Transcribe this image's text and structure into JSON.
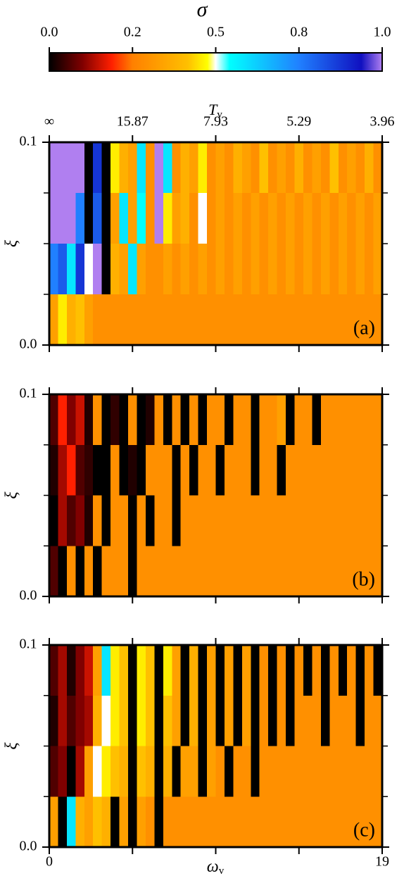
{
  "chart_data": {
    "type": "heatmap",
    "colorbar_title": "σ",
    "colorbar_ticks": [
      {
        "value": 0,
        "label": "0.0"
      },
      0.2,
      0.5,
      0.8,
      {
        "value": 1,
        "label": "1.0"
      }
    ],
    "colorscale": [
      [
        0,
        "#000000"
      ],
      [
        0.08,
        "#800000"
      ],
      [
        0.15,
        "#ff2000"
      ],
      [
        0.2,
        "#ff8000"
      ],
      [
        0.4,
        "#ffc000"
      ],
      [
        0.47,
        "#ffff00"
      ],
      [
        0.5,
        "#ffffff"
      ],
      [
        0.55,
        "#00ffff"
      ],
      [
        0.8,
        "#2080ff"
      ],
      [
        0.95,
        "#1010c0"
      ],
      [
        1,
        "#b07ff0"
      ]
    ],
    "x2label": "T",
    "x2label_sub": "v",
    "x2ticks": [
      {
        "value": 0,
        "label": "∞"
      },
      {
        "value": 4.75,
        "label": "15.87"
      },
      {
        "value": 9.5,
        "label": "7.93"
      },
      {
        "value": 14.25,
        "label": "5.29"
      },
      {
        "value": 19,
        "label": "3.96"
      }
    ],
    "xlabel": "ω",
    "xlabel_sub": "v",
    "xlim": [
      0,
      19
    ],
    "xticks": [
      0,
      19
    ],
    "xminor": [
      4.75,
      9.5,
      14.25
    ],
    "ylabel": "ξ",
    "ylim": [
      0,
      0.1
    ],
    "yticks": [
      {
        "value": 0,
        "label": "0.0"
      },
      0.1
    ],
    "yminor": [
      0.025,
      0.05,
      0.075
    ],
    "x": [
      0.25,
      0.75,
      1.25,
      1.75,
      2.25,
      2.75,
      3.25,
      3.75,
      4.25,
      4.75,
      5.25,
      5.75,
      6.25,
      6.75,
      7.25,
      7.75,
      8.25,
      8.75,
      9.25,
      9.75,
      10.25,
      10.75,
      11.25,
      11.75,
      12.25,
      12.75,
      13.25,
      13.75,
      14.25,
      14.75,
      15.25,
      15.75,
      16.25,
      16.75,
      17.25,
      17.75,
      18.25,
      18.75
    ],
    "y": [
      0.0875,
      0.0625,
      0.0375,
      0.0125
    ],
    "panels": [
      {
        "label": "(a)",
        "z": [
          [
            1,
            1,
            1,
            1,
            0,
            0.9,
            0,
            0.45,
            0.35,
            0.3,
            0.6,
            0.25,
            1,
            0.6,
            0.25,
            0.35,
            0.3,
            0.45,
            0.25,
            0.3,
            0.25,
            0.35,
            0.3,
            0.25,
            0.4,
            0.25,
            0.3,
            0.25,
            0.35,
            0.25,
            0.3,
            0.25,
            0.4,
            0.25,
            0.3,
            0.25,
            0.35,
            0.25
          ],
          [
            1,
            1,
            1,
            0.8,
            0,
            0.85,
            0,
            0.3,
            0.6,
            0.3,
            0.55,
            0.25,
            1,
            0.45,
            0.3,
            0.35,
            0.25,
            0.5,
            0.25,
            0.3,
            0.25,
            0.3,
            0.25,
            0.3,
            0.25,
            0.3,
            0.25,
            0.3,
            0.25,
            0.3,
            0.25,
            0.3,
            0.25,
            0.3,
            0.25,
            0.3,
            0.25,
            0.3
          ],
          [
            0.8,
            0.85,
            0.6,
            0.9,
            0.5,
            1,
            0,
            0.35,
            0.3,
            0.6,
            0.3,
            0.25,
            0.25,
            0.3,
            0.25,
            0.3,
            0.25,
            0.3,
            0.25,
            0.3,
            0.25,
            0.3,
            0.25,
            0.3,
            0.25,
            0.3,
            0.25,
            0.3,
            0.25,
            0.3,
            0.25,
            0.3,
            0.25,
            0.3,
            0.25,
            0.3,
            0.25,
            0.3
          ],
          [
            0.3,
            0.45,
            0.35,
            0.4,
            0.3,
            0.25,
            0.25,
            0.25,
            0.25,
            0.25,
            0.25,
            0.25,
            0.25,
            0.25,
            0.25,
            0.25,
            0.25,
            0.25,
            0.25,
            0.25,
            0.25,
            0.25,
            0.25,
            0.25,
            0.25,
            0.25,
            0.25,
            0.25,
            0.25,
            0.25,
            0.25,
            0.25,
            0.25,
            0.25,
            0.25,
            0.25,
            0.25,
            0.25
          ]
        ]
      },
      {
        "label": "(b)",
        "z": [
          [
            0.05,
            0.15,
            0.08,
            0.12,
            0.02,
            0.25,
            0,
            0.03,
            0,
            0.25,
            0,
            0.02,
            0.25,
            0,
            0.25,
            0,
            0.25,
            0,
            0.25,
            0.25,
            0,
            0.25,
            0.25,
            0,
            0.25,
            0.25,
            0.3,
            0,
            0.25,
            0.25,
            0,
            0.25,
            0.25,
            0.25,
            0.25,
            0.25,
            0.25,
            0.25
          ],
          [
            0.02,
            0.1,
            0.15,
            0.05,
            0.03,
            0,
            0,
            0.25,
            0,
            0.02,
            0,
            0.25,
            0.25,
            0.25,
            0,
            0.25,
            0,
            0.25,
            0.25,
            0,
            0.25,
            0.25,
            0.25,
            0,
            0.25,
            0.25,
            0,
            0.25,
            0.25,
            0.25,
            0.25,
            0.25,
            0.25,
            0.25,
            0.25,
            0.25,
            0.25,
            0.25
          ],
          [
            0,
            0.1,
            0.05,
            0.08,
            0.02,
            0.25,
            0,
            0.25,
            0.25,
            0,
            0.25,
            0,
            0.25,
            0.25,
            0,
            0.25,
            0.25,
            0.25,
            0.25,
            0.25,
            0.25,
            0.25,
            0.25,
            0.25,
            0.25,
            0.25,
            0.25,
            0.25,
            0.25,
            0.25,
            0.25,
            0.25,
            0.25,
            0.25,
            0.25,
            0.25,
            0.25,
            0.25
          ],
          [
            0.05,
            0,
            0.25,
            0,
            0.25,
            0,
            0.25,
            0.25,
            0.25,
            0,
            0.25,
            0.25,
            0.25,
            0.25,
            0.25,
            0.25,
            0.25,
            0.25,
            0.25,
            0.25,
            0.25,
            0.25,
            0.25,
            0.25,
            0.25,
            0.25,
            0.25,
            0.25,
            0.25,
            0.25,
            0.25,
            0.25,
            0.25,
            0.25,
            0.25,
            0.25,
            0.25,
            0.25
          ]
        ]
      },
      {
        "label": "(c)",
        "z": [
          [
            0.05,
            0.1,
            0.02,
            0.08,
            0.12,
            0.3,
            0.6,
            0.45,
            0.4,
            0,
            0.45,
            0.4,
            0,
            0.45,
            0.3,
            0,
            0.35,
            0,
            0.3,
            0,
            0.3,
            0,
            0.3,
            0,
            0.25,
            0,
            0.25,
            0,
            0.25,
            0,
            0.25,
            0,
            0.25,
            0,
            0.25,
            0,
            0.25,
            0
          ],
          [
            0.02,
            0.1,
            0.05,
            0.08,
            0.1,
            0.35,
            0.5,
            0.45,
            0.4,
            0,
            0.45,
            0.4,
            0,
            0.4,
            0.3,
            0,
            0.35,
            0,
            0.3,
            0,
            0.3,
            0,
            0.3,
            0,
            0.25,
            0,
            0.25,
            0,
            0.25,
            0.25,
            0.25,
            0,
            0.25,
            0.25,
            0.25,
            0,
            0.25,
            0.25
          ],
          [
            0.05,
            0.08,
            0,
            0.1,
            0.3,
            0.5,
            0.45,
            0.4,
            0.35,
            0,
            0.4,
            0.35,
            0,
            0.35,
            0,
            0.3,
            0.3,
            0,
            0.3,
            0.25,
            0,
            0.25,
            0.25,
            0,
            0.25,
            0.25,
            0.25,
            0.25,
            0.25,
            0.25,
            0.25,
            0.25,
            0.25,
            0.25,
            0.25,
            0.25,
            0.25,
            0.25
          ],
          [
            0.3,
            0,
            0.6,
            0.35,
            0.3,
            0.4,
            0.35,
            0,
            0.3,
            0,
            0.3,
            0.25,
            0,
            0.25,
            0.25,
            0.25,
            0.25,
            0.25,
            0.25,
            0.25,
            0.25,
            0.25,
            0.25,
            0.25,
            0.25,
            0.25,
            0.25,
            0.25,
            0.25,
            0.25,
            0.25,
            0.25,
            0.25,
            0.25,
            0.25,
            0.25,
            0.25,
            0.25
          ]
        ]
      }
    ]
  }
}
